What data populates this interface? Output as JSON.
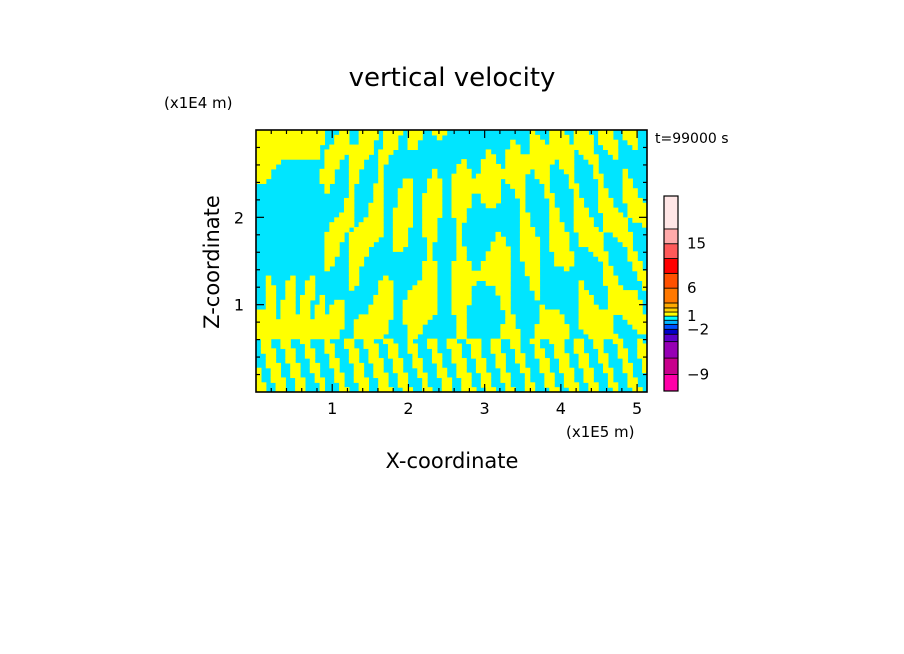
{
  "chart_data": {
    "type": "heatmap",
    "title": "vertical velocity",
    "time_label": "t=99000 s",
    "xlabel": "X-coordinate",
    "ylabel": "Z-coordinate",
    "x_unit": "(x1E5 m)",
    "z_unit": "(x1E4 m)",
    "xlim": [
      0,
      5.13
    ],
    "ylim": [
      0,
      3.0
    ],
    "x_ticks": [
      "1",
      "2",
      "3",
      "4",
      "5"
    ],
    "y_ticks": [
      "1",
      "2"
    ],
    "field_colors": {
      "positive": "#ffff00",
      "negative": "#00e5ff"
    },
    "colorbar": {
      "levels": [
        {
          "color": "#ff00a8"
        },
        {
          "color": "#c8008c"
        },
        {
          "color": "#9600b4"
        },
        {
          "color": "#5a00c8"
        },
        {
          "color": "#0000c8"
        },
        {
          "color": "#0050ff"
        },
        {
          "color": "#00b4ff"
        },
        {
          "color": "#00ffff"
        },
        {
          "color": "#ffff00"
        },
        {
          "color": "#ffd200"
        },
        {
          "color": "#ffaa00"
        },
        {
          "color": "#ff7800"
        },
        {
          "color": "#ff5000"
        },
        {
          "color": "#ff0000"
        },
        {
          "color": "#ff5a5a"
        },
        {
          "color": "#ffaaaa"
        },
        {
          "color": "#ffe6e6"
        }
      ],
      "labels": [
        {
          "text": "15",
          "value": 15
        },
        {
          "text": "6",
          "value": 6
        },
        {
          "text": "1",
          "value": 1
        },
        {
          "text": "−2",
          "value": -2
        },
        {
          "text": "−9",
          "value": -9
        }
      ]
    }
  }
}
